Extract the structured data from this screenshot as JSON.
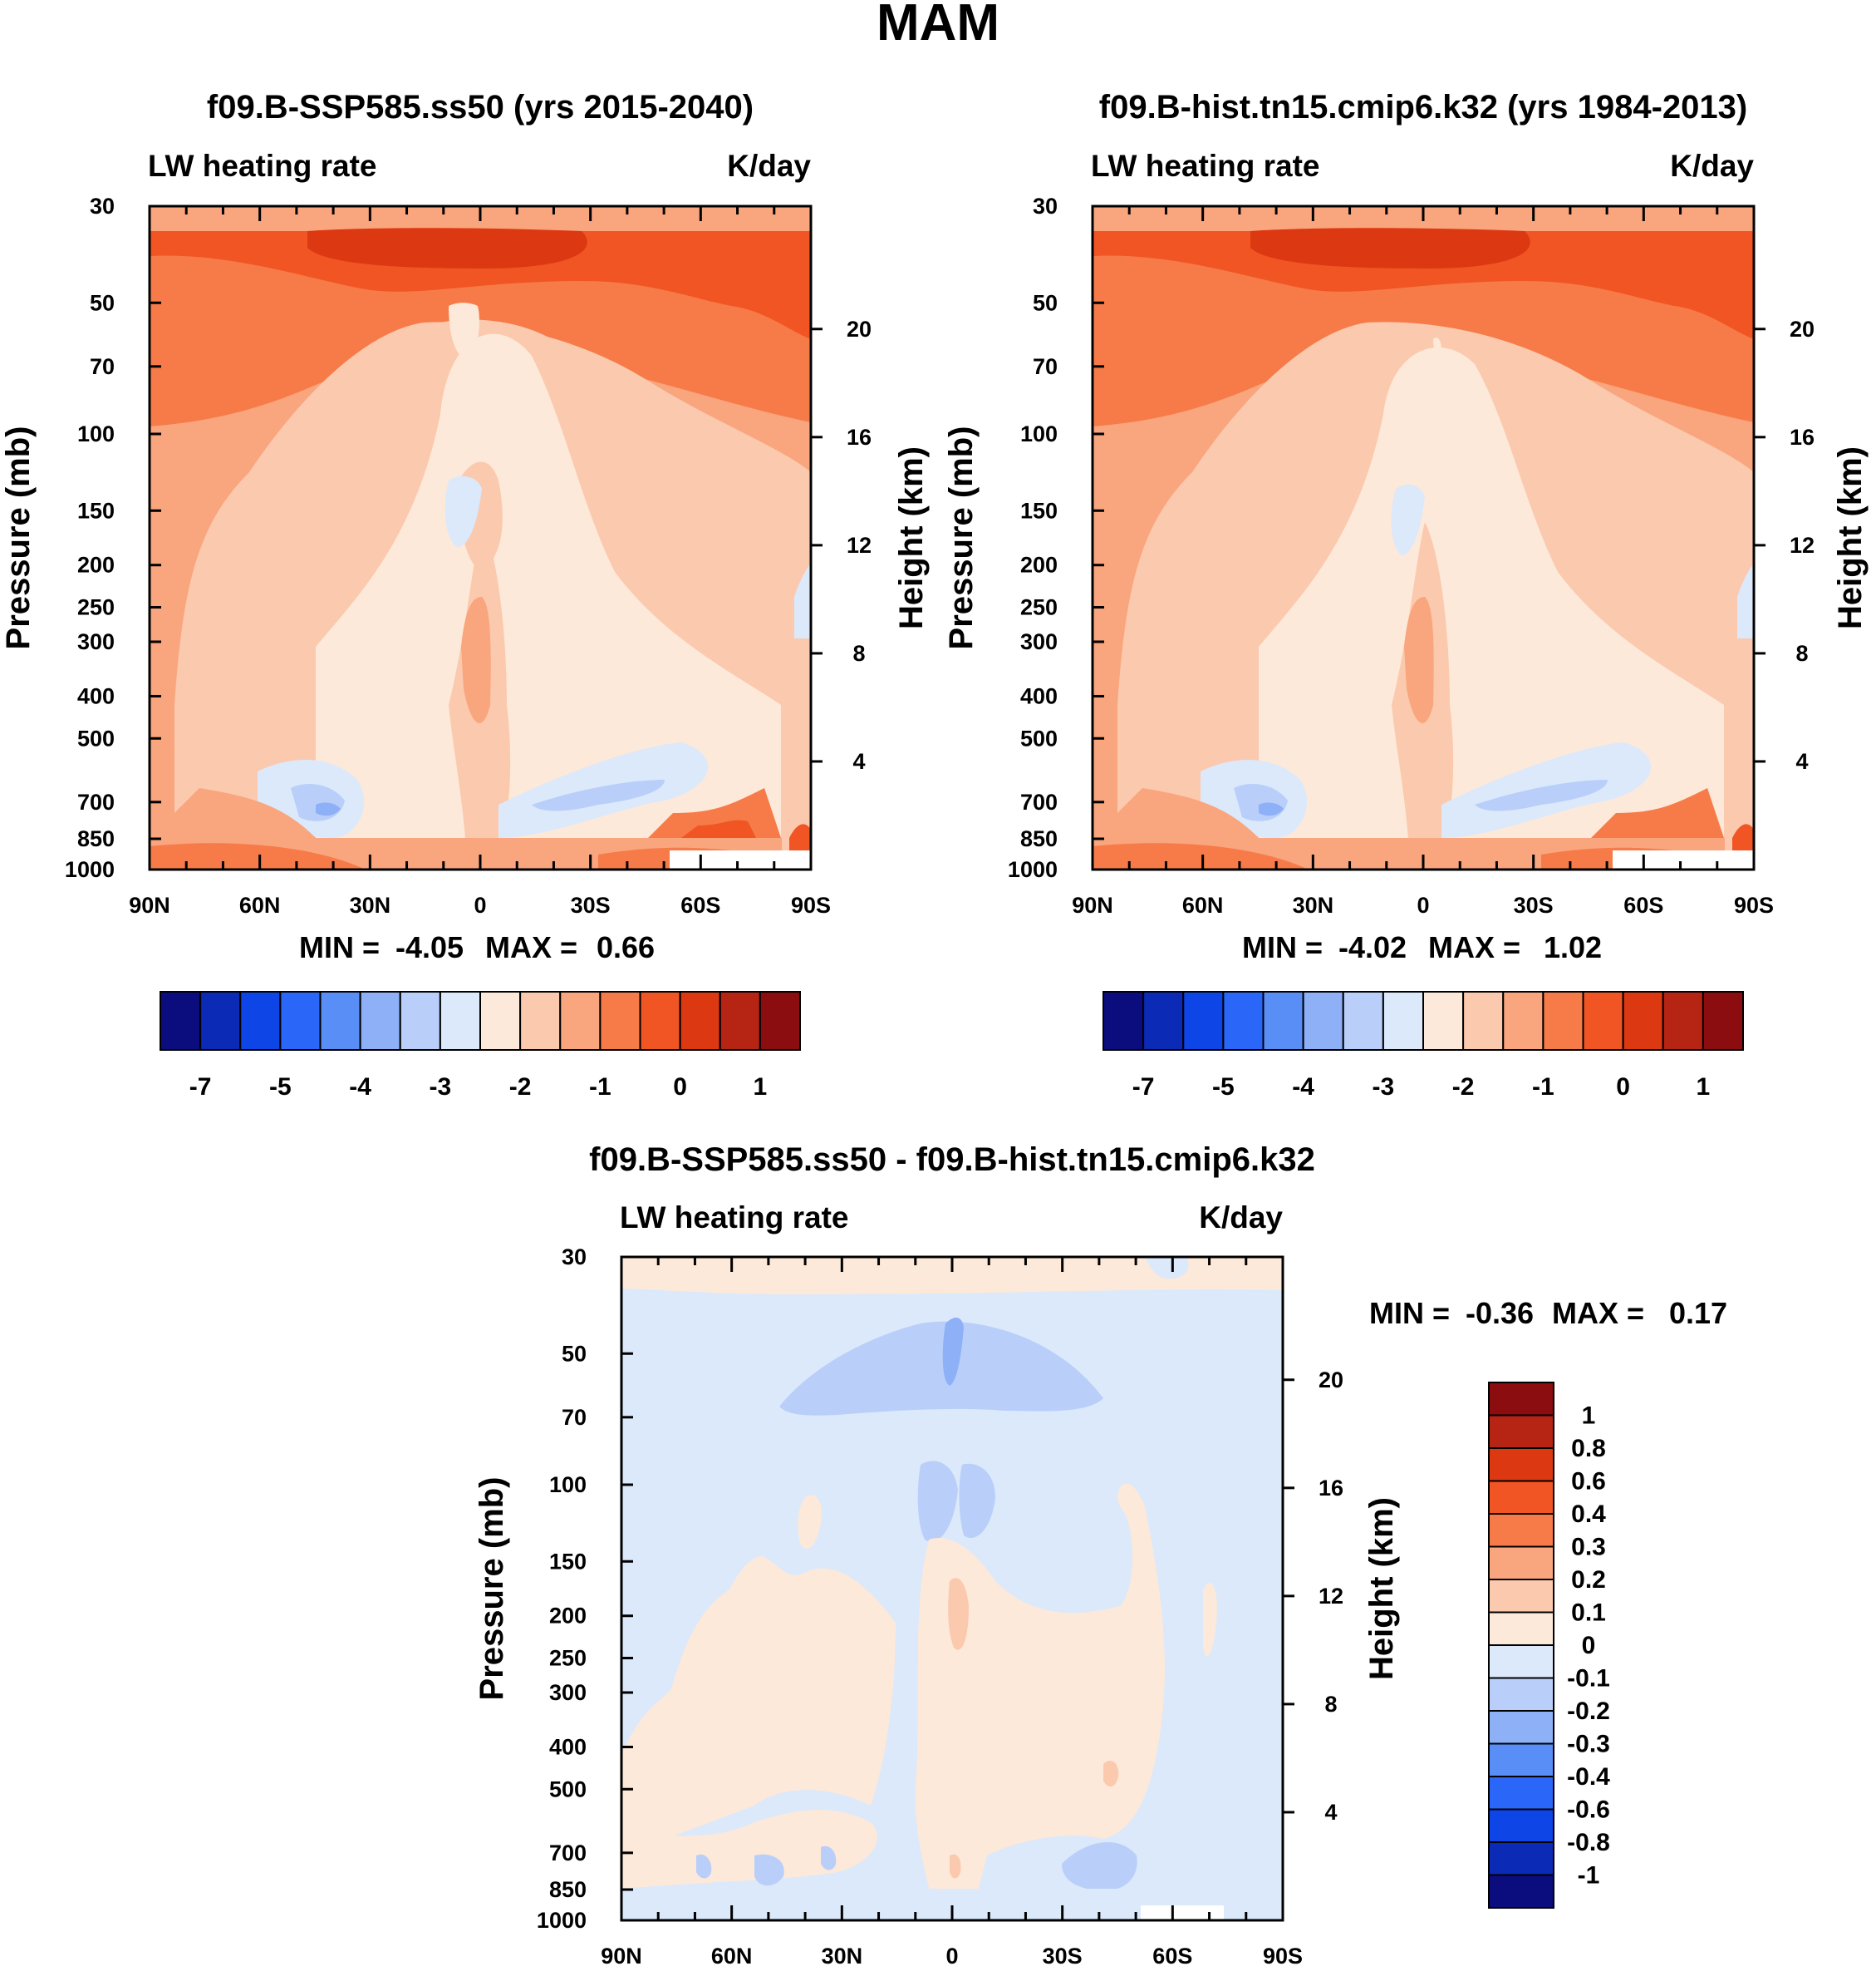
{
  "figure_title": "MAM",
  "chart_data": [
    {
      "type": "heatmap",
      "title": "f09.B-SSP585.ss50 (yrs 2015-2040)",
      "subtitle_left": "LW heating rate",
      "subtitle_right": "K/day",
      "xlabel": "",
      "ylabel": "Pressure (mb)",
      "ylabel_right": "Height (km)",
      "x_ticks": [
        "90N",
        "60N",
        "30N",
        "0",
        "30S",
        "60S",
        "90S"
      ],
      "y_ticks": [
        30,
        50,
        70,
        100,
        150,
        200,
        250,
        300,
        400,
        500,
        700,
        850,
        1000
      ],
      "y_ticks_right": [
        20,
        16,
        12,
        8,
        4
      ],
      "stats": {
        "min_label": "MIN =",
        "min": "-4.05",
        "max_label": "MAX =",
        "max": "0.66"
      },
      "colorbar": {
        "orientation": "horizontal",
        "labels": [
          "-7",
          "-5",
          "-4",
          "-3",
          "-2",
          "-1",
          "0",
          "1"
        ],
        "colors": [
          "#0b0c7e",
          "#0b2ab6",
          "#0d45e6",
          "#2a66f7",
          "#5a8ef7",
          "#8db0f7",
          "#b9cffa",
          "#dbe9fb",
          "#fde9d9",
          "#fbc9ae",
          "#f9a57e",
          "#f67b48",
          "#f15523",
          "#dc3812",
          "#b62414",
          "#8b0d10"
        ]
      }
    },
    {
      "type": "heatmap",
      "title": "f09.B-hist.tn15.cmip6.k32 (yrs 1984-2013)",
      "subtitle_left": "LW heating rate",
      "subtitle_right": "K/day",
      "xlabel": "",
      "ylabel": "Pressure (mb)",
      "ylabel_right": "Height (km)",
      "x_ticks": [
        "90N",
        "60N",
        "30N",
        "0",
        "30S",
        "60S",
        "90S"
      ],
      "y_ticks": [
        30,
        50,
        70,
        100,
        150,
        200,
        250,
        300,
        400,
        500,
        700,
        850,
        1000
      ],
      "y_ticks_right": [
        20,
        16,
        12,
        8,
        4
      ],
      "stats": {
        "min_label": "MIN =",
        "min": "-4.02",
        "max_label": "MAX =",
        "max": "1.02"
      },
      "colorbar": {
        "orientation": "horizontal",
        "labels": [
          "-7",
          "-5",
          "-4",
          "-3",
          "-2",
          "-1",
          "0",
          "1"
        ],
        "colors": [
          "#0b0c7e",
          "#0b2ab6",
          "#0d45e6",
          "#2a66f7",
          "#5a8ef7",
          "#8db0f7",
          "#b9cffa",
          "#dbe9fb",
          "#fde9d9",
          "#fbc9ae",
          "#f9a57e",
          "#f67b48",
          "#f15523",
          "#dc3812",
          "#b62414",
          "#8b0d10"
        ]
      }
    },
    {
      "type": "heatmap",
      "title": "f09.B-SSP585.ss50 - f09.B-hist.tn15.cmip6.k32",
      "subtitle_left": "LW heating rate",
      "subtitle_right": "K/day",
      "xlabel": "",
      "ylabel": "Pressure (mb)",
      "ylabel_right": "Height (km)",
      "x_ticks": [
        "90N",
        "60N",
        "30N",
        "0",
        "30S",
        "60S",
        "90S"
      ],
      "y_ticks": [
        30,
        50,
        70,
        100,
        150,
        200,
        250,
        300,
        400,
        500,
        700,
        850,
        1000
      ],
      "y_ticks_right": [
        20,
        16,
        12,
        8,
        4
      ],
      "stats": {
        "min_label": "MIN =",
        "min": "-0.36",
        "max_label": "MAX =",
        "max": "0.17"
      },
      "colorbar": {
        "orientation": "vertical",
        "labels": [
          "1",
          "0.8",
          "0.6",
          "0.4",
          "0.3",
          "0.2",
          "0.1",
          "0",
          "-0.1",
          "-0.2",
          "-0.3",
          "-0.4",
          "-0.6",
          "-0.8",
          "-1"
        ],
        "colors": [
          "#8b0d10",
          "#b62414",
          "#dc3812",
          "#f15523",
          "#f67b48",
          "#f9a57e",
          "#fbc9ae",
          "#fde9d9",
          "#dbe9fb",
          "#b9cffa",
          "#8db0f7",
          "#5a8ef7",
          "#2a66f7",
          "#0d45e6",
          "#0b2ab6",
          "#0b0c7e"
        ]
      }
    }
  ]
}
